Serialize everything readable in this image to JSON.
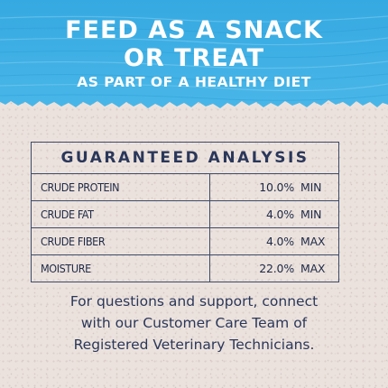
{
  "colors": {
    "banner_blue": "#3aaee4",
    "banner_light": "#66c3ee",
    "navy": "#2a375a",
    "background": "#ece2dd"
  },
  "headline": {
    "line1": "FEED AS A SNACK",
    "line2": "OR TREAT",
    "line3": "AS PART OF A HEALTHY DIET"
  },
  "analysis": {
    "title": "GUARANTEED ANALYSIS",
    "rows": [
      {
        "nutrient": "CRUDE PROTEIN",
        "value": "10.0%",
        "qualifier": "MIN"
      },
      {
        "nutrient": "CRUDE FAT",
        "value": "4.0%",
        "qualifier": "MIN"
      },
      {
        "nutrient": "CRUDE FIBER",
        "value": "4.0%",
        "qualifier": "MAX"
      },
      {
        "nutrient": "MOISTURE",
        "value": "22.0%",
        "qualifier": "MAX"
      }
    ]
  },
  "support": {
    "line1": "For questions and support, connect",
    "line2": "with our Customer Care Team of",
    "line3": "Registered Veterinary Technicians."
  }
}
